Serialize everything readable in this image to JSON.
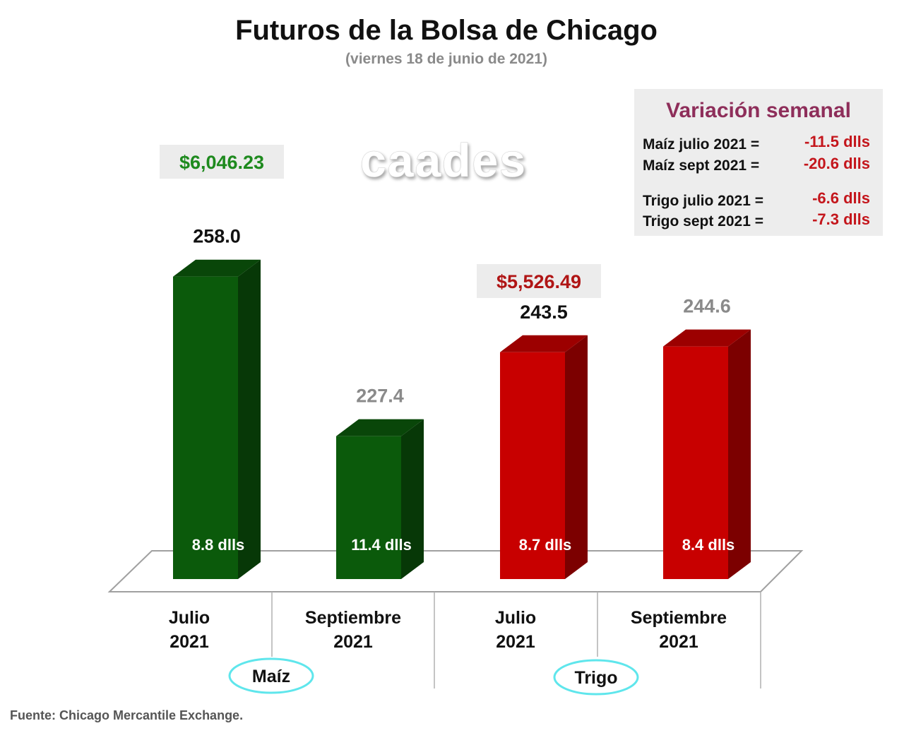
{
  "chart_data": {
    "type": "bar",
    "title": "Futuros de la Bolsa de Chicago",
    "subtitle": "(viernes 18 de junio de 2021)",
    "watermark": "caades",
    "source": "Fuente: Chicago Mercantile Exchange.",
    "ylim": [
      200,
      265
    ],
    "groups": [
      {
        "name": "Maíz",
        "color": "#0b5a0b",
        "money": "$6,046.23",
        "money_color": "#1e8a1e"
      },
      {
        "name": "Trigo",
        "color": "#c80000",
        "money": "$5,526.49",
        "money_color": "#b01515"
      }
    ],
    "bars": [
      {
        "category_line1": "Julio",
        "category_line2": "2021",
        "group": 0,
        "value": 258.0,
        "value_label": "258.0",
        "value_color": "#111111",
        "inner_label": "8.8 dlls"
      },
      {
        "category_line1": "Septiembre",
        "category_line2": "2021",
        "group": 0,
        "value": 227.4,
        "value_label": "227.4",
        "value_color": "#8a8a8a",
        "inner_label": "11.4 dlls"
      },
      {
        "category_line1": "Julio",
        "category_line2": "2021",
        "group": 1,
        "value": 243.5,
        "value_label": "243.5",
        "value_color": "#111111",
        "inner_label": "8.7 dlls"
      },
      {
        "category_line1": "Septiembre",
        "category_line2": "2021",
        "group": 1,
        "value": 244.6,
        "value_label": "244.6",
        "value_color": "#8a8a8a",
        "inner_label": "8.4 dlls"
      }
    ],
    "weekly_variation": {
      "title": "Variación semanal",
      "rows": [
        {
          "label": "Maíz julio 2021  =",
          "value": "-11.5 dlls"
        },
        {
          "label": "Maíz sept 2021  =",
          "value": "-20.6 dlls"
        },
        {
          "label": "Trigo julio 2021 =",
          "value": "-6.6 dlls"
        },
        {
          "label": "Trigo sept 2021  =",
          "value": "-7.3 dlls"
        }
      ]
    }
  }
}
